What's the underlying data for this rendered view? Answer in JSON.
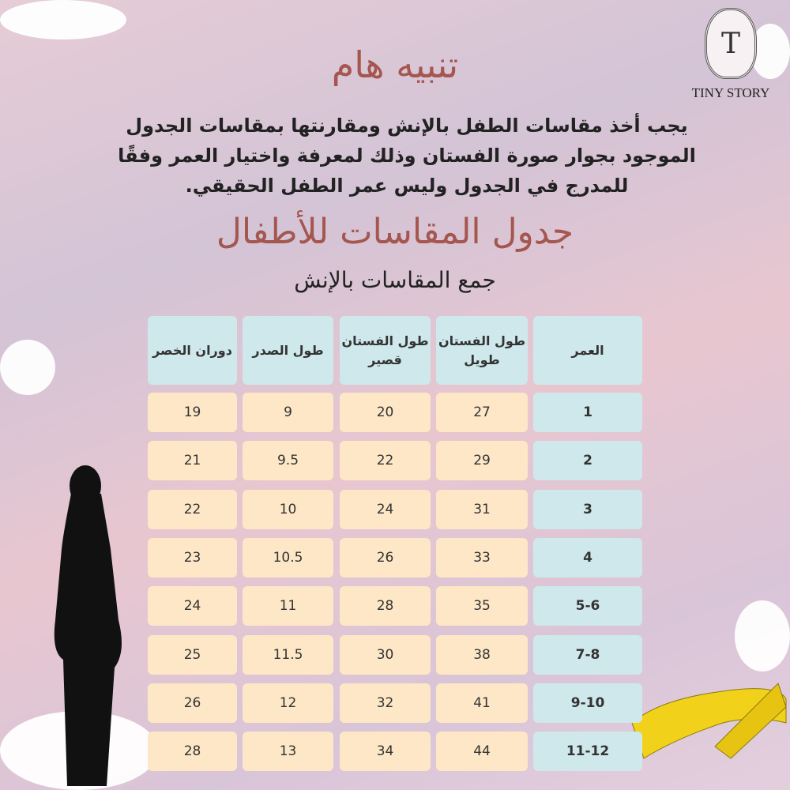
{
  "heading": "تنبيه هام",
  "notice_lines": [
    "يجب أخذ مقاسات الطفل بالإنش ومقارنتها بمقاسات الجدول",
    "الموجود بجوار صورة الفستان وذلك لمعرفة واختيار العمر وفقًا",
    "للمدرج في الجدول وليس عمر الطفل الحقيقي."
  ],
  "table_title": "جدول المقاسات للأطفال",
  "table_subtitle": "جمع المقاسات بالإنش",
  "logo": {
    "letter": "T",
    "text": "TINY STORY"
  },
  "colors": {
    "title": "#a4564f",
    "header_cell": "#cfe8ec",
    "value_cell": "#fde7c6"
  },
  "table": {
    "headers": [
      "العمر",
      "طول الفستان طويل",
      "طول الفستان قصير",
      "طول الصدر",
      "دوران الخصر"
    ],
    "rows": [
      [
        "1",
        "27",
        "20",
        "9",
        "19"
      ],
      [
        "2",
        "29",
        "22",
        "9.5",
        "21"
      ],
      [
        "3",
        "31",
        "24",
        "10",
        "22"
      ],
      [
        "4",
        "33",
        "26",
        "10.5",
        "23"
      ],
      [
        "5-6",
        "35",
        "28",
        "11",
        "24"
      ],
      [
        "7-8",
        "38",
        "30",
        "11.5",
        "25"
      ],
      [
        "9-10",
        "41",
        "32",
        "12",
        "26"
      ],
      [
        "11-12",
        "44",
        "34",
        "13",
        "28"
      ]
    ]
  }
}
